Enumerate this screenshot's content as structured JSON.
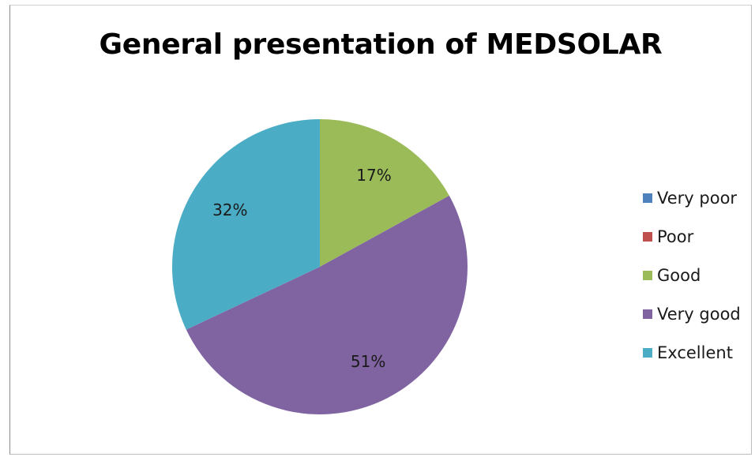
{
  "chart_data": {
    "type": "pie",
    "title": "General presentation of MEDSOLAR",
    "categories": [
      "Very poor",
      "Poor",
      "Good",
      "Very good",
      "Excellent"
    ],
    "values": [
      0,
      0,
      17,
      51,
      32
    ],
    "data_labels": [
      "",
      "",
      "17%",
      "51%",
      "32%"
    ],
    "colors": [
      "#4f81bd",
      "#c0504d",
      "#9bbb59",
      "#8064a2",
      "#4bacc6"
    ],
    "legend_position": "right"
  }
}
